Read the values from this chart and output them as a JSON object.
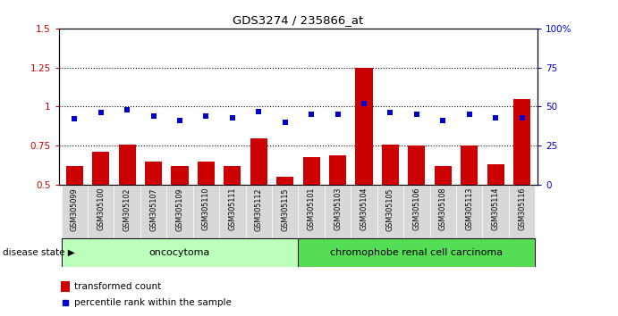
{
  "title": "GDS3274 / 235866_at",
  "samples": [
    "GSM305099",
    "GSM305100",
    "GSM305102",
    "GSM305107",
    "GSM305109",
    "GSM305110",
    "GSM305111",
    "GSM305112",
    "GSM305115",
    "GSM305101",
    "GSM305103",
    "GSM305104",
    "GSM305105",
    "GSM305106",
    "GSM305108",
    "GSM305113",
    "GSM305114",
    "GSM305116"
  ],
  "transformed_count": [
    0.62,
    0.71,
    0.76,
    0.65,
    0.62,
    0.65,
    0.62,
    0.8,
    0.55,
    0.68,
    0.69,
    1.25,
    0.76,
    0.75,
    0.62,
    0.75,
    0.63,
    1.05
  ],
  "percentile_rank": [
    42,
    46,
    48,
    44,
    41,
    44,
    43,
    47,
    40,
    45,
    45,
    52,
    46,
    45,
    41,
    45,
    43,
    43
  ],
  "bar_color": "#cc0000",
  "dot_color": "#0000cc",
  "ylim_left": [
    0.5,
    1.5
  ],
  "ylim_right": [
    0,
    100
  ],
  "yticks_left": [
    0.5,
    0.75,
    1.0,
    1.25,
    1.5
  ],
  "yticks_right": [
    0,
    25,
    50,
    75,
    100
  ],
  "ytick_labels_left": [
    "0.5",
    "0.75",
    "1",
    "1.25",
    "1.5"
  ],
  "ytick_labels_right": [
    "0",
    "25",
    "50",
    "75",
    "100%"
  ],
  "hlines": [
    0.75,
    1.0,
    1.25
  ],
  "group1_label": "oncocytoma",
  "group2_label": "chromophobe renal cell carcinoma",
  "n_group1": 9,
  "n_group2": 9,
  "disease_state_label": "disease state",
  "legend_bar_label": "transformed count",
  "legend_dot_label": "percentile rank within the sample",
  "group1_color": "#bbffbb",
  "group2_color": "#55dd55",
  "tick_area_color": "#d8d8d8",
  "plot_bg_color": "#ffffff"
}
